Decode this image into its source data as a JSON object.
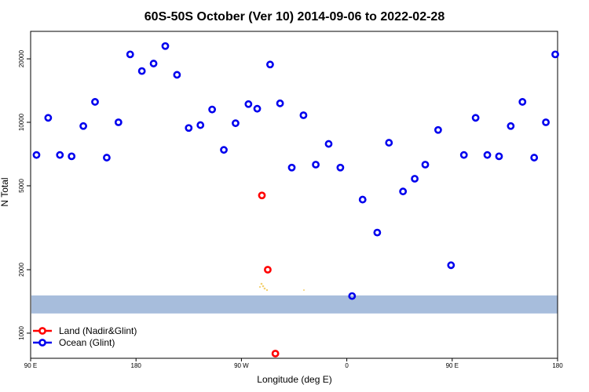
{
  "chart_data": {
    "type": "scatter",
    "title": "60S-50S October (Ver 10)   2014-09-06 to 2022-02-28",
    "xlabel": "Longitude (deg E)",
    "ylabel": "N Total",
    "x_ticks": [
      {
        "value": 90,
        "label": "90 E"
      },
      {
        "value": 180,
        "label": "180"
      },
      {
        "value": 270,
        "label": "90 W"
      },
      {
        "value": 360,
        "label": "0"
      },
      {
        "value": 450,
        "label": "90 E"
      },
      {
        "value": 540,
        "label": "180"
      }
    ],
    "y_ticks": [
      1000,
      2000,
      5000,
      10000,
      20000
    ],
    "y_scale": "log",
    "xlim": [
      90,
      540
    ],
    "ylim": [
      760,
      27000
    ],
    "grid": false,
    "legend_position": "bottom-left",
    "background_band": {
      "label": "",
      "color": "#a7bddc",
      "y_range": [
        1240,
        1510
      ]
    },
    "series": [
      {
        "name": "Land (Nadir&Glint)",
        "color": "#ff0000",
        "x": [
          287.5,
          292.5,
          299.0
        ],
        "y": [
          4500,
          2000,
          800
        ]
      },
      {
        "name": "Ocean (Glint)",
        "color": "#0000ee",
        "x": [
          95,
          105,
          115,
          125,
          135,
          145,
          155,
          165,
          175,
          185,
          195,
          205,
          215,
          225,
          235,
          245,
          255,
          265,
          276,
          283.5,
          294.5,
          303,
          313,
          323,
          333.5,
          344.5,
          354.5,
          364.5,
          373.5,
          386,
          396,
          408,
          418,
          427,
          438,
          449,
          460,
          470,
          480,
          490,
          500,
          510,
          520,
          530,
          538
        ],
        "y": [
          7000,
          10500,
          7000,
          6900,
          9600,
          12500,
          6800,
          10000,
          21000,
          17500,
          19000,
          23000,
          16800,
          9400,
          9700,
          11500,
          7400,
          9900,
          12200,
          11600,
          18800,
          12300,
          6100,
          10800,
          6300,
          7900,
          6100,
          1500,
          4300,
          3000,
          8000,
          4700,
          5400,
          6300,
          9200,
          2100,
          7000,
          10500,
          7000,
          6900,
          9600,
          12500,
          6800,
          10000,
          21000
        ]
      }
    ]
  }
}
